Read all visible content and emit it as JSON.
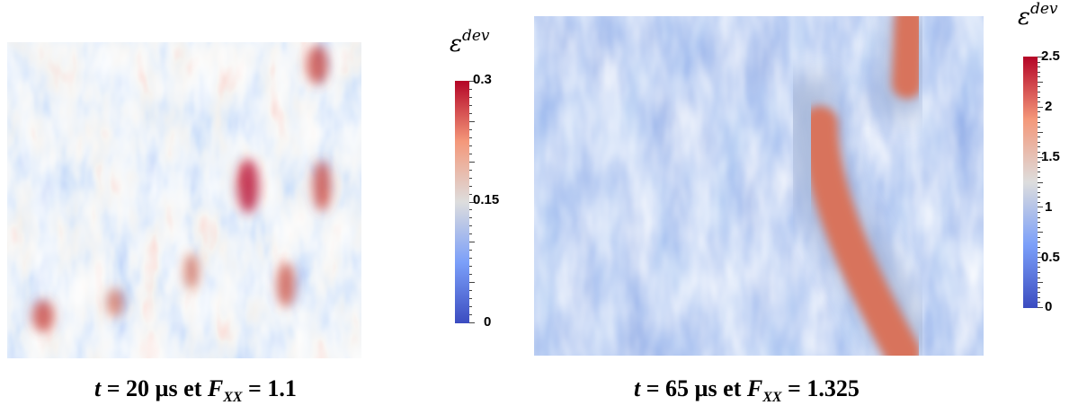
{
  "colors": {
    "cold": "#3b4cc0",
    "neutral": "#dddddd",
    "hot": "#b40426"
  },
  "panels": [
    {
      "name": "strain-field-left",
      "colorbar": {
        "title_symbol": "ε",
        "title_sup": "dev",
        "ticks": [
          "0.3",
          "0.15",
          "0"
        ]
      },
      "caption": {
        "t_symbol": "t",
        "t_text": " = 20 µs et ",
        "f_symbol": "F",
        "f_sub": "XX",
        "f_text": " = 1.1"
      }
    },
    {
      "name": "strain-field-right",
      "colorbar": {
        "title_symbol": "ε",
        "title_sup": "dev",
        "ticks": [
          "2.5",
          "2",
          "1.5",
          "1",
          "0.5",
          "0"
        ]
      },
      "caption": {
        "t_symbol": "t",
        "t_text": " = 65 µs et ",
        "f_symbol": "F",
        "f_sub": "XX",
        "f_text": " = 1.325"
      }
    }
  ]
}
